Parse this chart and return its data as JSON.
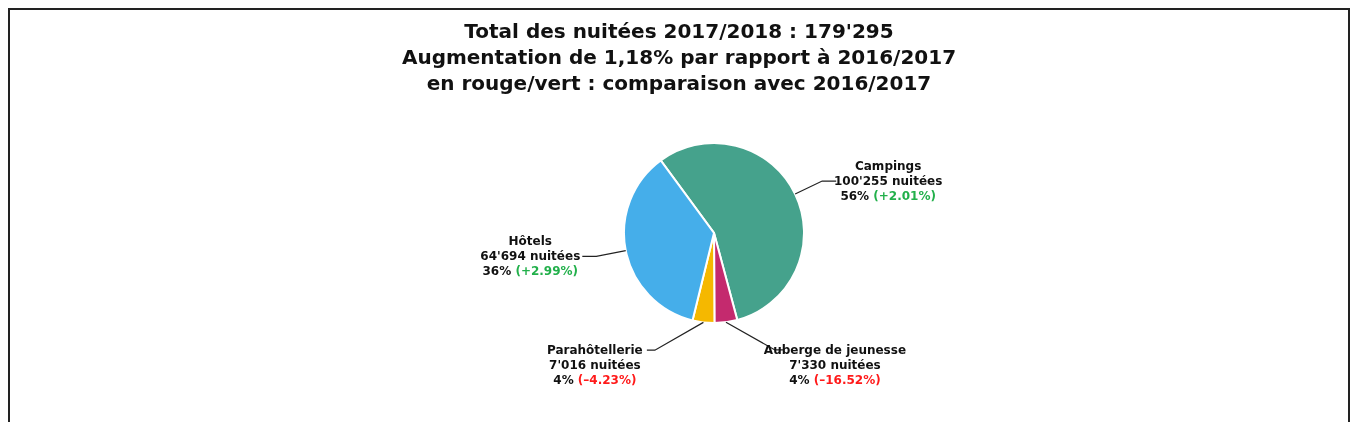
{
  "chart_data": {
    "type": "pie",
    "title": "Total des nuitées 2017/2018 : 179'295",
    "subtitle": "Augmentation de 1,18% par rapport à 2016/2017\nen rouge/vert : comparaison avec 2016/2017",
    "categories": [
      "Campings",
      "Auberge de jeunesse",
      "Parahôtellerie",
      "Hôtels"
    ],
    "values": [
      100255,
      7330,
      7016,
      64694
    ],
    "colors": [
      "#45a28c",
      "#c42a6e",
      "#f5b800",
      "#45aeea"
    ],
    "value_labels": [
      "100'255 nuitées",
      "7'330 nuitées",
      "7'016 nuitées",
      "64'694 nuitées"
    ],
    "annotations": [
      {
        "text": "56%",
        "x": "Campings"
      },
      {
        "text": "(+2.01%)",
        "x": "Campings"
      },
      {
        "text": "4%",
        "x": "Auberge de jeunesse"
      },
      {
        "text": "(–16.52%)",
        "x": "Auberge de jeunesse"
      },
      {
        "text": "4%",
        "x": "Parahôtellerie"
      },
      {
        "text": "(–4.23%)",
        "x": "Parahôtellerie"
      },
      {
        "text": "36%",
        "x": "Hôtels"
      },
      {
        "text": "(+2.99%)",
        "x": "Hôtels"
      }
    ],
    "legend": false
  }
}
